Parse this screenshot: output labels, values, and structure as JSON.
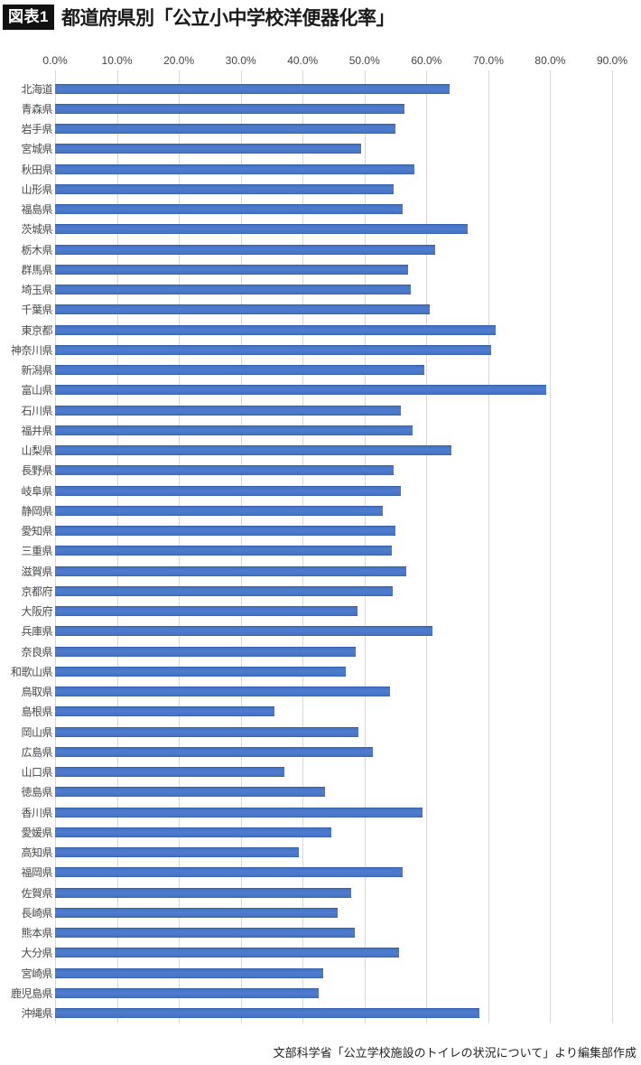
{
  "header": {
    "badge": "図表1",
    "title": "都道府県別「公立小中学校洋便器化率」"
  },
  "footer": {
    "source": "文部科学省「公立学校施設のトイレの状況について」より編集部作成"
  },
  "colors": {
    "bar": "#4472c4",
    "grid": "#d9d9d9",
    "badge_bg": "#111111",
    "badge_text": "#ffffff"
  },
  "chart_data": {
    "type": "bar",
    "orientation": "horizontal",
    "title": "都道府県別「公立小中学校洋便器化率」",
    "xlabel": "",
    "ylabel": "",
    "unit": "%",
    "xlim": [
      0,
      90
    ],
    "grid": "vertical",
    "legend": "none",
    "x_ticks": [
      "0.0%",
      "10.0%",
      "20.0%",
      "30.0%",
      "40.0%",
      "50.0%",
      "60.0%",
      "70.0%",
      "80.0%",
      "90.0%"
    ],
    "categories": [
      "北海道",
      "青森県",
      "岩手県",
      "宮城県",
      "秋田県",
      "山形県",
      "福島県",
      "茨城県",
      "栃木県",
      "群馬県",
      "埼玉県",
      "千葉県",
      "東京都",
      "神奈川県",
      "新潟県",
      "富山県",
      "石川県",
      "福井県",
      "山梨県",
      "長野県",
      "岐阜県",
      "静岡県",
      "愛知県",
      "三重県",
      "滋賀県",
      "京都府",
      "大阪府",
      "兵庫県",
      "奈良県",
      "和歌山県",
      "鳥取県",
      "島根県",
      "岡山県",
      "広島県",
      "山口県",
      "徳島県",
      "香川県",
      "愛媛県",
      "高知県",
      "福岡県",
      "佐賀県",
      "長崎県",
      "熊本県",
      "大分県",
      "宮崎県",
      "鹿児島県",
      "沖縄県"
    ],
    "values": [
      63.7,
      56.5,
      55.0,
      49.5,
      58.0,
      54.7,
      56.2,
      66.7,
      61.4,
      57.0,
      57.5,
      60.6,
      71.2,
      70.5,
      59.7,
      79.3,
      55.8,
      57.8,
      64.0,
      54.7,
      55.9,
      53.0,
      55.0,
      54.4,
      56.8,
      54.6,
      48.9,
      61.0,
      48.6,
      46.9,
      54.1,
      35.4,
      49.0,
      51.3,
      37.0,
      43.6,
      59.3,
      44.6,
      39.4,
      56.1,
      47.8,
      45.6,
      48.4,
      55.6,
      43.3,
      42.6,
      68.5
    ]
  }
}
